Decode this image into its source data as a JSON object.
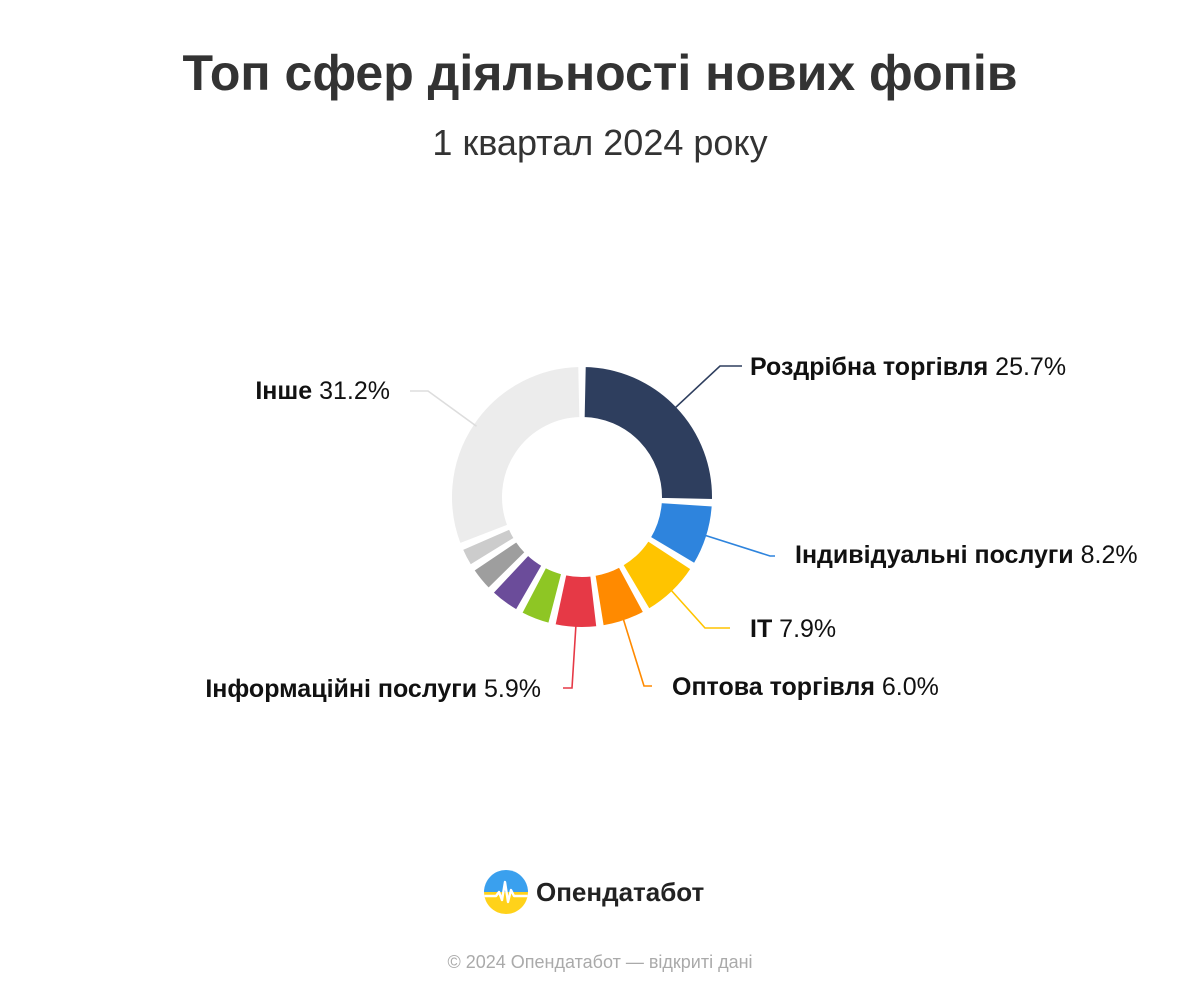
{
  "header": {
    "title": "Топ сфер діяльності нових фопів",
    "subtitle": "1 квартал 2024 року"
  },
  "chart_data": {
    "type": "pie",
    "title": "Топ сфер діяльності нових фопів",
    "subtitle": "1 квартал 2024 року",
    "unit": "%",
    "slices": [
      {
        "name": "Роздрібна торгівля",
        "value": 25.7,
        "value_label": "25.7%",
        "color": "#2e3e5e",
        "labeled": true
      },
      {
        "name": "Індивідуальні послуги",
        "value": 8.2,
        "value_label": "8.2%",
        "color": "#2e84dd",
        "labeled": true
      },
      {
        "name": "IT",
        "value": 7.9,
        "value_label": "7.9%",
        "color": "#ffc400",
        "labeled": true
      },
      {
        "name": "Оптова торгівля",
        "value": 6.0,
        "value_label": "6.0%",
        "color": "#ff8a00",
        "labeled": true
      },
      {
        "name": "Інформаційні послуги",
        "value": 5.9,
        "value_label": "5.9%",
        "color": "#e63946",
        "labeled": true
      },
      {
        "name": "",
        "value": 4.3,
        "color": "#8ec624",
        "labeled": false
      },
      {
        "name": "",
        "value": 4.3,
        "color": "#6b4c9a",
        "labeled": false
      },
      {
        "name": "",
        "value": 3.6,
        "color": "#9e9e9e",
        "labeled": false
      },
      {
        "name": "",
        "value": 2.9,
        "color": "#cccccc",
        "labeled": false
      },
      {
        "name": "Інше",
        "value": 31.2,
        "value_label": "31.2%",
        "color": "#ececec",
        "labeled": true
      }
    ]
  },
  "brand": {
    "name": "Опендатабот",
    "logo_icon": "opendatabot-logo-icon"
  },
  "footer": {
    "text": "© 2024 Опендатабот — відкриті дані"
  }
}
